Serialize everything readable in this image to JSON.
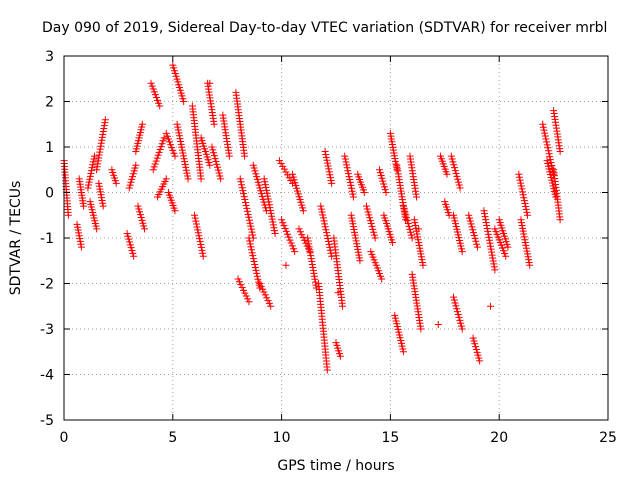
{
  "chart_data": {
    "type": "scatter",
    "title": "Day 090 of 2019, Sidereal Day-to-day VTEC variation (SDTVAR) for receiver mrbl",
    "xlabel": "GPS time / hours",
    "ylabel": "SDTVAR / TECUs",
    "xlim": [
      0,
      25
    ],
    "ylim": [
      -5,
      3
    ],
    "xticks": [
      "0",
      "5",
      "10",
      "15",
      "20",
      "25"
    ],
    "yticks": [
      "3",
      "2",
      "1",
      "0",
      "-1",
      "-2",
      "-3",
      "-4",
      "-5"
    ],
    "grid": true,
    "marker": "plus",
    "series": [
      {
        "name": "SDTVAR",
        "color": "#ff0000",
        "tracks": [
          {
            "x": [
              0.0,
              0.2
            ],
            "y": [
              0.7,
              -0.5
            ]
          },
          {
            "x": [
              0.6,
              0.8
            ],
            "y": [
              -0.7,
              -1.2
            ]
          },
          {
            "x": [
              0.7,
              0.9
            ],
            "y": [
              0.3,
              -0.3
            ]
          },
          {
            "x": [
              1.1,
              1.4
            ],
            "y": [
              0.1,
              0.8
            ]
          },
          {
            "x": [
              1.2,
              1.5
            ],
            "y": [
              -0.2,
              -0.8
            ]
          },
          {
            "x": [
              1.5,
              1.9
            ],
            "y": [
              0.5,
              1.6
            ]
          },
          {
            "x": [
              1.6,
              1.8
            ],
            "y": [
              0.2,
              -0.3
            ]
          },
          {
            "x": [
              2.2,
              2.4
            ],
            "y": [
              0.5,
              0.2
            ]
          },
          {
            "x": [
              2.9,
              3.2
            ],
            "y": [
              -0.9,
              -1.4
            ]
          },
          {
            "x": [
              3.0,
              3.3
            ],
            "y": [
              0.1,
              0.6
            ]
          },
          {
            "x": [
              3.3,
              3.6
            ],
            "y": [
              0.9,
              1.5
            ]
          },
          {
            "x": [
              3.4,
              3.7
            ],
            "y": [
              -0.3,
              -0.8
            ]
          },
          {
            "x": [
              4.0,
              4.4
            ],
            "y": [
              2.4,
              1.9
            ]
          },
          {
            "x": [
              4.1,
              4.6
            ],
            "y": [
              0.5,
              1.2
            ]
          },
          {
            "x": [
              4.3,
              4.7
            ],
            "y": [
              -0.1,
              0.3
            ]
          },
          {
            "x": [
              4.7,
              5.1
            ],
            "y": [
              1.3,
              0.8
            ]
          },
          {
            "x": [
              4.8,
              5.1
            ],
            "y": [
              0.0,
              -0.4
            ]
          },
          {
            "x": [
              5.0,
              5.5
            ],
            "y": [
              2.8,
              2.0
            ]
          },
          {
            "x": [
              5.2,
              5.7
            ],
            "y": [
              1.5,
              0.3
            ]
          },
          {
            "x": [
              5.9,
              6.3
            ],
            "y": [
              1.9,
              0.3
            ]
          },
          {
            "x": [
              6.0,
              6.4
            ],
            "y": [
              -0.5,
              -1.4
            ]
          },
          {
            "x": [
              6.3,
              6.7
            ],
            "y": [
              1.2,
              0.6
            ]
          },
          {
            "x": [
              6.6,
              6.9
            ],
            "y": [
              2.4,
              1.5
            ]
          },
          {
            "x": [
              6.8,
              7.2
            ],
            "y": [
              1.0,
              0.3
            ]
          },
          {
            "x": [
              7.3,
              7.6
            ],
            "y": [
              1.7,
              0.8
            ]
          },
          {
            "x": [
              7.9,
              8.3
            ],
            "y": [
              2.2,
              0.8
            ]
          },
          {
            "x": [
              8.0,
              8.5
            ],
            "y": [
              -1.9,
              -2.4
            ]
          },
          {
            "x": [
              8.1,
              8.7
            ],
            "y": [
              0.3,
              -1.0
            ]
          },
          {
            "x": [
              8.5,
              9.0
            ],
            "y": [
              -1.0,
              -2.1
            ]
          },
          {
            "x": [
              8.7,
              9.3
            ],
            "y": [
              0.6,
              -0.4
            ]
          },
          {
            "x": [
              9.0,
              9.5
            ],
            "y": [
              -2.0,
              -2.5
            ]
          },
          {
            "x": [
              9.2,
              9.7
            ],
            "y": [
              0.3,
              -0.9
            ]
          },
          {
            "x": [
              9.9,
              10.5
            ],
            "y": [
              0.7,
              0.2
            ]
          },
          {
            "x": [
              10.0,
              10.6
            ],
            "y": [
              -0.6,
              -1.3
            ]
          },
          {
            "x": [
              10.5,
              11.0
            ],
            "y": [
              0.4,
              -0.4
            ]
          },
          {
            "x": [
              10.8,
              11.3
            ],
            "y": [
              -0.8,
              -1.3
            ]
          },
          {
            "x": [
              11.2,
              11.6
            ],
            "y": [
              -1.0,
              -2.1
            ]
          },
          {
            "x": [
              11.7,
              12.1
            ],
            "y": [
              -2.0,
              -3.9
            ]
          },
          {
            "x": [
              11.8,
              12.3
            ],
            "y": [
              -0.3,
              -1.4
            ]
          },
          {
            "x": [
              12.0,
              12.3
            ],
            "y": [
              0.9,
              0.2
            ]
          },
          {
            "x": [
              12.4,
              12.8
            ],
            "y": [
              -1.0,
              -2.5
            ]
          },
          {
            "x": [
              12.5,
              12.7
            ],
            "y": [
              -3.3,
              -3.6
            ]
          },
          {
            "x": [
              12.9,
              13.3
            ],
            "y": [
              0.8,
              -0.1
            ]
          },
          {
            "x": [
              13.2,
              13.6
            ],
            "y": [
              -0.5,
              -1.5
            ]
          },
          {
            "x": [
              13.5,
              13.8
            ],
            "y": [
              0.4,
              0.0
            ]
          },
          {
            "x": [
              13.9,
              14.3
            ],
            "y": [
              -0.3,
              -1.0
            ]
          },
          {
            "x": [
              14.1,
              14.6
            ],
            "y": [
              -1.3,
              -1.9
            ]
          },
          {
            "x": [
              14.5,
              14.8
            ],
            "y": [
              0.5,
              0.0
            ]
          },
          {
            "x": [
              14.7,
              15.1
            ],
            "y": [
              -0.5,
              -1.1
            ]
          },
          {
            "x": [
              15.0,
              15.3
            ],
            "y": [
              1.3,
              0.5
            ]
          },
          {
            "x": [
              15.2,
              15.6
            ],
            "y": [
              -2.7,
              -3.5
            ]
          },
          {
            "x": [
              15.3,
              15.7
            ],
            "y": [
              0.6,
              -0.6
            ]
          },
          {
            "x": [
              15.6,
              16.0
            ],
            "y": [
              -0.3,
              -1.0
            ]
          },
          {
            "x": [
              15.9,
              16.2
            ],
            "y": [
              0.8,
              -0.1
            ]
          },
          {
            "x": [
              16.0,
              16.4
            ],
            "y": [
              -1.8,
              -3.0
            ]
          },
          {
            "x": [
              16.1,
              16.5
            ],
            "y": [
              -0.6,
              -1.6
            ]
          },
          {
            "x": [
              17.3,
              17.6
            ],
            "y": [
              0.8,
              0.4
            ]
          },
          {
            "x": [
              17.5,
              17.7
            ],
            "y": [
              -0.2,
              -0.5
            ]
          },
          {
            "x": [
              17.8,
              18.2
            ],
            "y": [
              0.8,
              0.1
            ]
          },
          {
            "x": [
              17.9,
              18.3
            ],
            "y": [
              -0.5,
              -1.3
            ]
          },
          {
            "x": [
              17.9,
              18.3
            ],
            "y": [
              -2.3,
              -3.0
            ]
          },
          {
            "x": [
              18.6,
              19.0
            ],
            "y": [
              -0.5,
              -1.2
            ]
          },
          {
            "x": [
              18.8,
              19.1
            ],
            "y": [
              -3.2,
              -3.7
            ]
          },
          {
            "x": [
              19.3,
              19.8
            ],
            "y": [
              -0.4,
              -1.7
            ]
          },
          {
            "x": [
              19.8,
              20.3
            ],
            "y": [
              -0.8,
              -1.4
            ]
          },
          {
            "x": [
              20.0,
              20.4
            ],
            "y": [
              -0.6,
              -1.2
            ]
          },
          {
            "x": [
              20.9,
              21.3
            ],
            "y": [
              0.4,
              -0.5
            ]
          },
          {
            "x": [
              21.0,
              21.4
            ],
            "y": [
              -0.6,
              -1.6
            ]
          },
          {
            "x": [
              22.0,
              22.5
            ],
            "y": [
              1.5,
              0.4
            ]
          },
          {
            "x": [
              22.2,
              22.6
            ],
            "y": [
              0.7,
              -0.1
            ]
          },
          {
            "x": [
              22.5,
              22.8
            ],
            "y": [
              1.8,
              0.9
            ]
          },
          {
            "x": [
              22.5,
              22.8
            ],
            "y": [
              0.5,
              -0.6
            ]
          }
        ],
        "points": [
          {
            "x": 19.6,
            "y": -2.5
          },
          {
            "x": 16.3,
            "y": -0.8
          },
          {
            "x": 17.2,
            "y": -2.9
          },
          {
            "x": 12.6,
            "y": -2.2
          },
          {
            "x": 10.2,
            "y": -1.6
          },
          {
            "x": 6.7,
            "y": 2.4
          }
        ]
      }
    ]
  }
}
